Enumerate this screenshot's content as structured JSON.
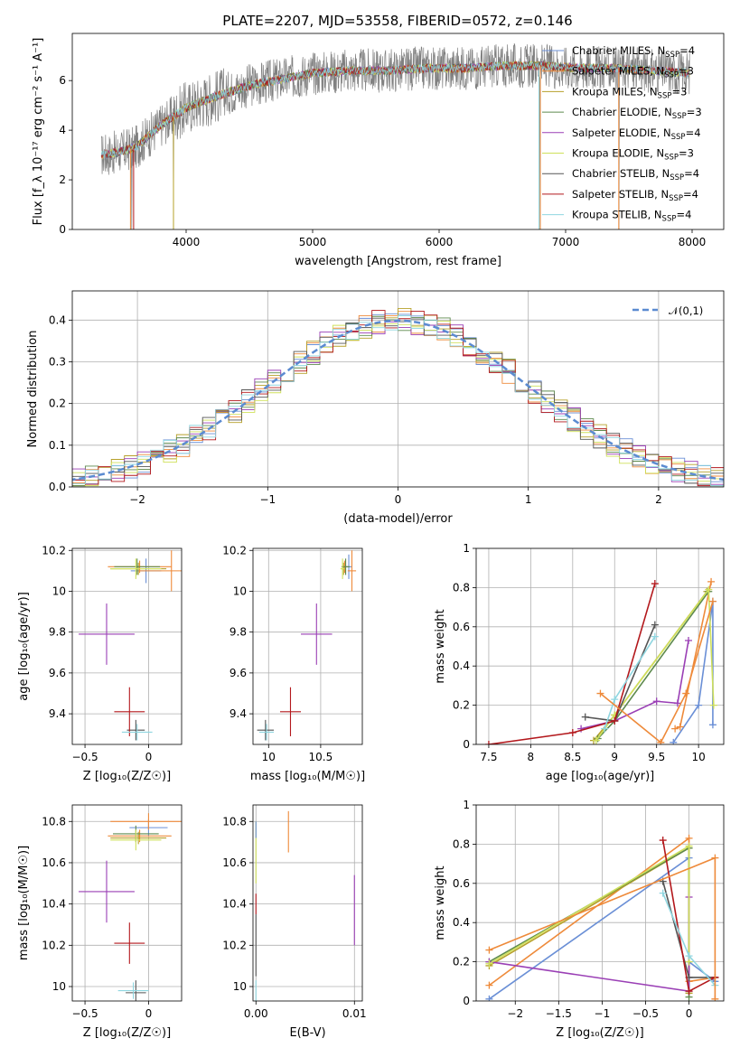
{
  "title": "PLATE=2207, MJD=53558, FIBERID=0572, z=0.146",
  "colors": {
    "data": "#808080",
    "series": [
      "#6a8fd6",
      "#ee8a3a",
      "#b6a02a",
      "#5e8a4e",
      "#9a3fb5",
      "#cfe05a",
      "#555555",
      "#b3181c",
      "#8fd6e0"
    ],
    "gaussian": "#5b8bd1"
  },
  "chart_data": [
    {
      "id": "spectrum",
      "type": "line",
      "xlabel": "wavelength [Angstrom, rest frame]",
      "ylabel": "Flux [f_λ 10⁻¹⁷ erg cm⁻² s⁻¹ A⁻¹]",
      "xlim": [
        3100,
        8250
      ],
      "ylim": [
        0,
        7.9
      ],
      "xticks": [
        4000,
        5000,
        6000,
        7000,
        8000
      ],
      "yticks": [
        0,
        2,
        4,
        6
      ],
      "legend_position": "top-right",
      "legend": [
        "Chabrier MILES, N_SSP=4",
        "Salpeter MILES, N_SSP=3",
        "Kroupa MILES, N_SSP=3",
        "Chabrier ELODIE, N_SSP=3",
        "Salpeter ELODIE, N_SSP=4",
        "Kroupa ELODIE, N_SSP=3",
        "Chabrier STELIB, N_SSP=4",
        "Salpeter STELIB, N_SSP=4",
        "Kroupa STELIB, N_SSP=4"
      ],
      "data_range": [
        3330,
        7980
      ],
      "anchors": {
        "x": [
          3330,
          3450,
          3600,
          3800,
          4000,
          4200,
          4500,
          4800,
          5000,
          5300,
          5600,
          5900,
          6200,
          6500,
          6800,
          7100,
          7400,
          7700,
          7980
        ],
        "y": [
          3.0,
          3.1,
          3.3,
          4.2,
          4.9,
          5.3,
          5.8,
          6.1,
          6.3,
          6.4,
          6.4,
          6.5,
          6.5,
          6.6,
          6.6,
          6.5,
          6.5,
          6.4,
          6.3
        ]
      },
      "spikes_down": [
        {
          "x": 3570,
          "y": 0
        },
        {
          "x": 3900,
          "y": 0
        },
        {
          "x": 6790,
          "y": 0
        },
        {
          "x": 7420,
          "y": 0
        }
      ]
    },
    {
      "id": "residuals",
      "type": "histogram",
      "xlabel": "(data-model)/error",
      "ylabel": "Normed distribution",
      "xlim": [
        -2.5,
        2.5
      ],
      "ylim": [
        0,
        0.47
      ],
      "xticks": [
        -2,
        -1,
        0,
        1,
        2
      ],
      "yticks": [
        0.0,
        0.1,
        0.2,
        0.3,
        0.4
      ],
      "bin_width": 0.1,
      "legend": [
        "𝒩(0,1)"
      ],
      "legend_position": "top-right"
    },
    {
      "id": "age_vs_Z",
      "type": "errorbar",
      "xlabel": "Z [log₁₀(Z/Z☉)]",
      "ylabel": "age  [log₁₀(age/yr)]",
      "xlim": [
        -0.6,
        0.26
      ],
      "ylim": [
        9.25,
        10.21
      ],
      "xticks": [
        -0.5,
        0.0
      ],
      "yticks": [
        9.4,
        9.6,
        9.8,
        10.0,
        10.2
      ],
      "points": [
        {
          "x": -0.02,
          "y": 10.1,
          "xerr": 0.12,
          "yerr": 0.06,
          "c": 0
        },
        {
          "x": -0.07,
          "y": 10.12,
          "xerr": 0.25,
          "yerr": 0.03,
          "c": 1
        },
        {
          "x": -0.08,
          "y": 10.11,
          "xerr": 0.22,
          "yerr": 0.03,
          "c": 2
        },
        {
          "x": -0.09,
          "y": 10.12,
          "xerr": 0.18,
          "yerr": 0.04,
          "c": 3
        },
        {
          "x": -0.33,
          "y": 9.79,
          "xerr": 0.22,
          "yerr": 0.15,
          "c": 4
        },
        {
          "x": -0.1,
          "y": 10.11,
          "xerr": 0.2,
          "yerr": 0.05,
          "c": 5
        },
        {
          "x": -0.1,
          "y": 9.32,
          "xerr": 0.07,
          "yerr": 0.05,
          "c": 6
        },
        {
          "x": -0.15,
          "y": 9.41,
          "xerr": 0.12,
          "yerr": 0.12,
          "c": 7
        },
        {
          "x": -0.09,
          "y": 9.31,
          "xerr": 0.12,
          "yerr": 0.04,
          "c": 8
        },
        {
          "x": 0.18,
          "y": 10.1,
          "xerr": 0.25,
          "yerr": 0.1,
          "c": 1
        }
      ]
    },
    {
      "id": "age_vs_mass",
      "type": "errorbar",
      "xlabel": "mass [log₁₀(M/M☉)]",
      "ylabel": "",
      "xlim": [
        9.85,
        10.9
      ],
      "ylim": [
        9.25,
        10.21
      ],
      "xticks": [
        10.0,
        10.5
      ],
      "yticks": [
        9.4,
        9.6,
        9.8,
        10.0,
        10.2
      ],
      "points": [
        {
          "x": 10.77,
          "y": 10.12,
          "xerr": 0.03,
          "yerr": 0.06,
          "c": 0
        },
        {
          "x": 10.73,
          "y": 10.12,
          "xerr": 0.03,
          "yerr": 0.03,
          "c": 1
        },
        {
          "x": 10.72,
          "y": 10.11,
          "xerr": 0.02,
          "yerr": 0.03,
          "c": 2
        },
        {
          "x": 10.74,
          "y": 10.12,
          "xerr": 0.04,
          "yerr": 0.04,
          "c": 3
        },
        {
          "x": 10.46,
          "y": 9.79,
          "xerr": 0.15,
          "yerr": 0.15,
          "c": 4
        },
        {
          "x": 10.71,
          "y": 10.11,
          "xerr": 0.02,
          "yerr": 0.05,
          "c": 5
        },
        {
          "x": 9.97,
          "y": 9.32,
          "xerr": 0.08,
          "yerr": 0.05,
          "c": 6
        },
        {
          "x": 10.21,
          "y": 9.41,
          "xerr": 0.1,
          "yerr": 0.12,
          "c": 7
        },
        {
          "x": 9.98,
          "y": 9.31,
          "xerr": 0.07,
          "yerr": 0.04,
          "c": 8
        },
        {
          "x": 10.8,
          "y": 10.1,
          "xerr": 0.04,
          "yerr": 0.1,
          "c": 1
        }
      ]
    },
    {
      "id": "mass_weight_vs_age",
      "type": "line",
      "xlabel": "age  [log₁₀(age/yr)]",
      "ylabel": "mass weight",
      "xlim": [
        7.35,
        10.3
      ],
      "ylim": [
        0,
        1.0
      ],
      "xticks": [
        7.5,
        8.0,
        8.5,
        9.0,
        9.5,
        10.0
      ],
      "yticks": [
        0.0,
        0.2,
        0.4,
        0.6,
        0.8,
        1.0
      ],
      "series": [
        {
          "c": 0,
          "x": [
            9.7,
            10.0,
            10.17,
            10.17
          ],
          "y": [
            0.01,
            0.2,
            0.73,
            0.1
          ]
        },
        {
          "c": 1,
          "x": [
            9.72,
            9.78,
            10.15
          ],
          "y": [
            0.08,
            0.09,
            0.83
          ]
        },
        {
          "c": 2,
          "x": [
            8.75,
            9.0,
            10.1
          ],
          "y": [
            0.02,
            0.15,
            0.78
          ]
        },
        {
          "c": 3,
          "x": [
            8.8,
            9.0,
            10.12
          ],
          "y": [
            0.03,
            0.12,
            0.78
          ]
        },
        {
          "c": 4,
          "x": [
            8.6,
            9.0,
            9.5,
            9.75,
            9.88
          ],
          "y": [
            0.08,
            0.12,
            0.22,
            0.21,
            0.53
          ]
        },
        {
          "c": 5,
          "x": [
            8.78,
            9.0,
            10.12,
            10.18
          ],
          "y": [
            0.02,
            0.15,
            0.79,
            0.2
          ]
        },
        {
          "c": 6,
          "x": [
            8.65,
            9.0,
            9.48
          ],
          "y": [
            0.14,
            0.12,
            0.61
          ]
        },
        {
          "c": 7,
          "x": [
            7.5,
            8.5,
            9.0,
            9.48
          ],
          "y": [
            0.0,
            0.06,
            0.12,
            0.82
          ]
        },
        {
          "c": 8,
          "x": [
            8.88,
            9.0,
            9.48
          ],
          "y": [
            0.08,
            0.23,
            0.55
          ]
        },
        {
          "c": 1,
          "x": [
            8.83,
            9.55,
            9.85,
            10.17
          ],
          "y": [
            0.26,
            0.01,
            0.26,
            0.73
          ]
        }
      ]
    },
    {
      "id": "mass_vs_Z",
      "type": "errorbar",
      "xlabel": "Z [log₁₀(Z/Z☉)]",
      "ylabel": "mass [log₁₀(M/M☉)]",
      "xlim": [
        -0.6,
        0.26
      ],
      "ylim": [
        9.93,
        10.88
      ],
      "xticks": [
        -0.5,
        0.0
      ],
      "yticks": [
        10.0,
        10.2,
        10.4,
        10.6,
        10.8
      ],
      "points": [
        {
          "x": 0.0,
          "y": 10.77,
          "xerr": 0.15,
          "yerr": 0.04,
          "c": 0
        },
        {
          "x": -0.07,
          "y": 10.73,
          "xerr": 0.25,
          "yerr": 0.03,
          "c": 1
        },
        {
          "x": -0.08,
          "y": 10.72,
          "xerr": 0.22,
          "yerr": 0.03,
          "c": 2
        },
        {
          "x": -0.1,
          "y": 10.74,
          "xerr": 0.18,
          "yerr": 0.04,
          "c": 3
        },
        {
          "x": -0.33,
          "y": 10.46,
          "xerr": 0.22,
          "yerr": 0.15,
          "c": 4
        },
        {
          "x": -0.1,
          "y": 10.71,
          "xerr": 0.2,
          "yerr": 0.05,
          "c": 5
        },
        {
          "x": -0.1,
          "y": 9.97,
          "xerr": 0.08,
          "yerr": 0.06,
          "c": 6
        },
        {
          "x": -0.15,
          "y": 10.21,
          "xerr": 0.12,
          "yerr": 0.1,
          "c": 7
        },
        {
          "x": -0.12,
          "y": 9.98,
          "xerr": 0.12,
          "yerr": 0.04,
          "c": 8
        },
        {
          "x": 0.0,
          "y": 10.8,
          "xerr": 0.3,
          "yerr": 0.04,
          "c": 1
        }
      ]
    },
    {
      "id": "mass_vs_ebv",
      "type": "errorbar",
      "xlabel": "E(B-V)",
      "ylabel": "",
      "xlim": [
        -0.0003,
        0.0108
      ],
      "ylim": [
        9.93,
        10.88
      ],
      "xticks": [
        0.0,
        0.01
      ],
      "xticklabels": [
        "0.00",
        "0.01"
      ],
      "yticks": [
        10.0,
        10.2,
        10.4,
        10.6,
        10.8
      ],
      "points": [
        {
          "x": 0.0,
          "y": 10.65,
          "xerr": 0,
          "yerr": 0.15,
          "c": 5
        },
        {
          "x": 0.0,
          "y": 10.4,
          "xerr": 0,
          "yerr": 0.05,
          "c": 7
        },
        {
          "x": 0.0,
          "y": 10.2,
          "xerr": 0,
          "yerr": 0.15,
          "c": 6
        },
        {
          "x": 0.0,
          "y": 9.98,
          "xerr": 0,
          "yerr": 0.05,
          "c": 8
        },
        {
          "x": 0.0,
          "y": 10.76,
          "xerr": 0,
          "yerr": 0.04,
          "c": 0
        },
        {
          "x": 0.0033,
          "y": 10.75,
          "xerr": 0,
          "yerr": 0.1,
          "c": 1
        },
        {
          "x": 0.01,
          "y": 10.37,
          "xerr": 0,
          "yerr": 0.17,
          "c": 4
        }
      ]
    },
    {
      "id": "mass_weight_vs_Z",
      "type": "line",
      "xlabel": "Z [log₁₀(Z/Z☉)]",
      "ylabel": "mass weight",
      "xlim": [
        -2.45,
        0.4
      ],
      "ylim": [
        0,
        1.0
      ],
      "xticks": [
        -2.0,
        -1.5,
        -1.0,
        -0.5,
        0.0
      ],
      "yticks": [
        0.0,
        0.2,
        0.4,
        0.6,
        0.8,
        1.0
      ],
      "series": [
        {
          "c": 0,
          "x": [
            -2.3,
            0.0,
            0.0,
            0.3
          ],
          "y": [
            0.01,
            0.73,
            0.2,
            0.1
          ]
        },
        {
          "c": 1,
          "x": [
            -2.3,
            0.0,
            0.0,
            0.3
          ],
          "y": [
            0.08,
            0.83,
            0.1,
            0.12
          ]
        },
        {
          "c": 2,
          "x": [
            -2.3,
            0.0,
            0.0
          ],
          "y": [
            0.18,
            0.78,
            0.04
          ]
        },
        {
          "c": 3,
          "x": [
            -2.3,
            0.0,
            0.0
          ],
          "y": [
            0.2,
            0.78,
            0.02
          ]
        },
        {
          "c": 4,
          "x": [
            -2.3,
            0.0,
            0.0
          ],
          "y": [
            0.2,
            0.05,
            0.53
          ]
        },
        {
          "c": 5,
          "x": [
            -2.3,
            -0.0,
            0.0
          ],
          "y": [
            0.19,
            0.79,
            0.2
          ]
        },
        {
          "c": 6,
          "x": [
            -0.3,
            0.0,
            0.3
          ],
          "y": [
            0.61,
            0.12,
            0.12
          ]
        },
        {
          "c": 7,
          "x": [
            -0.3,
            0.0,
            0.3
          ],
          "y": [
            0.82,
            0.05,
            0.12
          ]
        },
        {
          "c": 8,
          "x": [
            -0.3,
            0.0,
            0.3
          ],
          "y": [
            0.55,
            0.23,
            0.08
          ]
        },
        {
          "c": 1,
          "x": [
            -2.3,
            0.3,
            0.3
          ],
          "y": [
            0.26,
            0.73,
            0.01
          ]
        }
      ]
    }
  ]
}
